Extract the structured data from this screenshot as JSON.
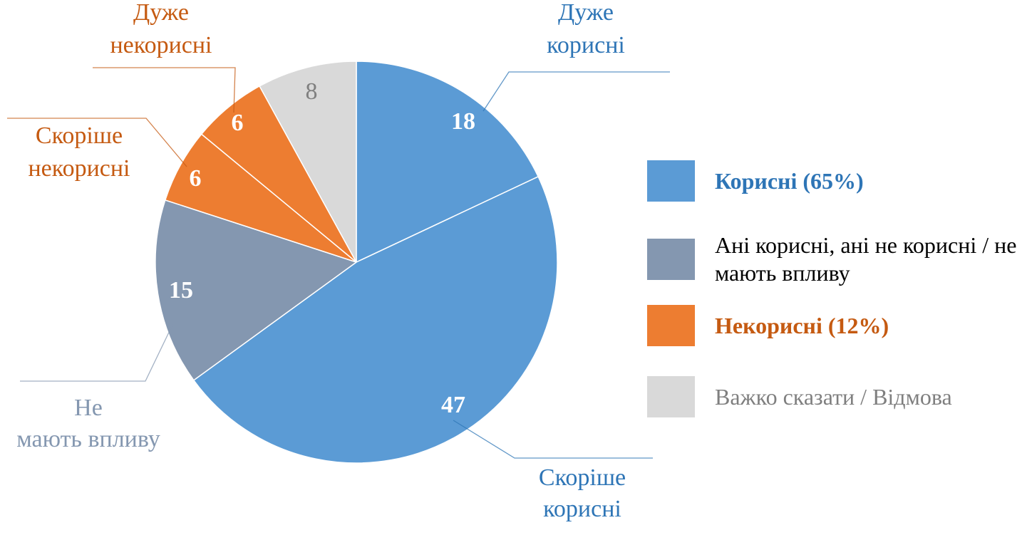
{
  "chart_data": {
    "type": "pie",
    "title": "",
    "slices": [
      {
        "label": "Дуже корисні",
        "value": 18,
        "group": 0,
        "label_color": "#2E75B6",
        "value_color": "#ffffff"
      },
      {
        "label": "Скоріше корисні",
        "value": 47,
        "group": 0,
        "label_color": "#2E75B6",
        "value_color": "#ffffff"
      },
      {
        "label": "Не мають впливу",
        "value": 15,
        "group": 1,
        "label_color": "#8497B0",
        "value_color": "#ffffff"
      },
      {
        "label": "Скоріше некорисні",
        "value": 6,
        "group": 2,
        "label_color": "#C55A11",
        "value_color": "#ffffff"
      },
      {
        "label": "Дуже некорисні",
        "value": 6,
        "group": 2,
        "label_color": "#C55A11",
        "value_color": "#ffffff"
      },
      {
        "label": "",
        "value": 8,
        "group": 3,
        "label_color": "#7F7F7F",
        "value_color": "#7F7F7F"
      }
    ],
    "legend": [
      {
        "label": "Корисні (65%)",
        "color": "#5B9BD5",
        "text_color": "#2E75B6",
        "bold": true
      },
      {
        "label": "Ані корисні, ані не корисні / не мають впливу",
        "color": "#8497B0",
        "text_color": "#000000",
        "bold": false
      },
      {
        "label": "Некорисні (12%)",
        "color": "#ED7D31",
        "text_color": "#C55A11",
        "bold": true
      },
      {
        "label": "Важко сказати / Відмова",
        "color": "#D9D9D9",
        "text_color": "#7F7F7F",
        "bold": false
      }
    ],
    "legend_position": "right"
  }
}
